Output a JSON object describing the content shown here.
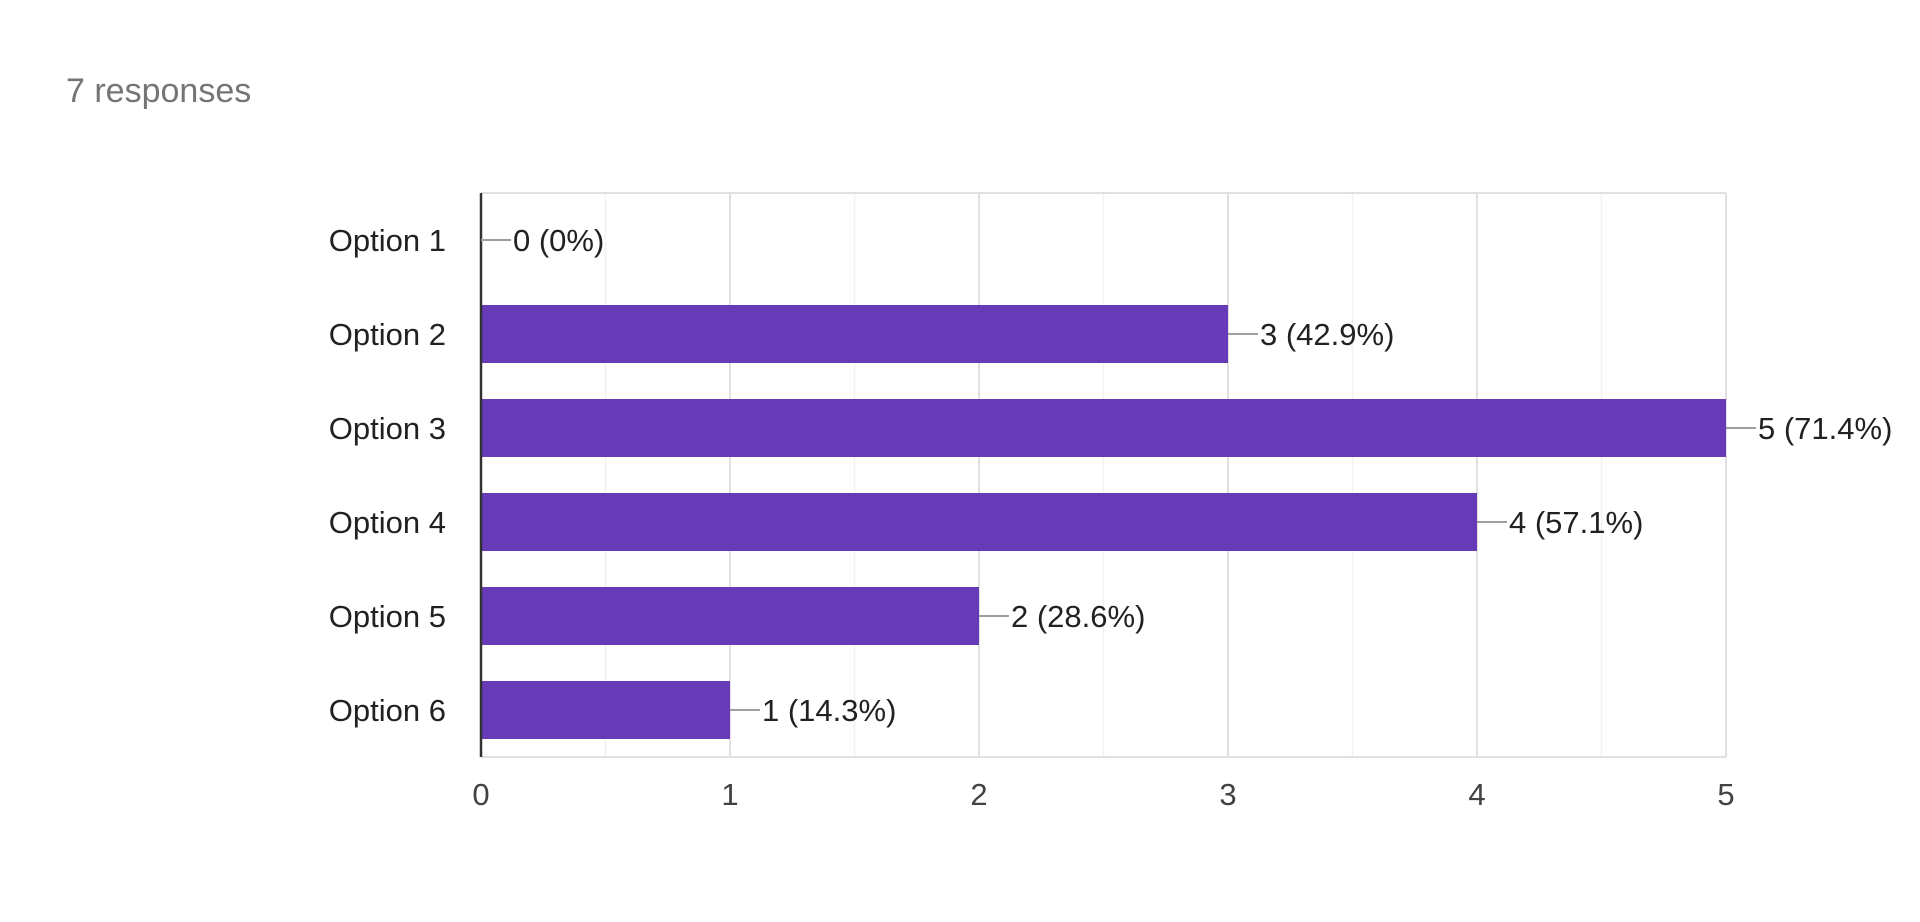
{
  "header": {
    "responses_label": "7 responses"
  },
  "colors": {
    "bar": "#673ab7",
    "gridline": "#e0e0e0",
    "minor_gridline": "#f1f1f1",
    "axis": "#333333",
    "leader_line": "#9e9e9e",
    "label_text": "#212121",
    "tick_text": "#424242",
    "responses_text": "#757575"
  },
  "chart_data": {
    "type": "bar",
    "orientation": "horizontal",
    "categories": [
      "Option 1",
      "Option 2",
      "Option 3",
      "Option 4",
      "Option 5",
      "Option 6"
    ],
    "values": [
      0,
      3,
      5,
      4,
      2,
      1
    ],
    "data_labels": [
      "0 (0%)",
      "3 (42.9%)",
      "5 (71.4%)",
      "4 (57.1%)",
      "2 (28.6%)",
      "1 (14.3%)"
    ],
    "xlim": [
      0,
      5
    ],
    "xticks": [
      "0",
      "1",
      "2",
      "3",
      "4",
      "5"
    ],
    "grid": true,
    "minor_grid": true,
    "legend": "none"
  }
}
